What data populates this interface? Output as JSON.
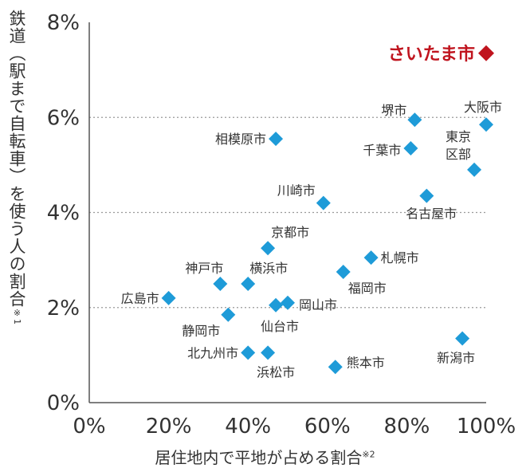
{
  "chart_data": {
    "type": "scatter",
    "title": "",
    "xlabel": "居住地内で平地が占める割合",
    "xlabel_note": "※2",
    "ylabel": "鉄道（駅まで自転車）を使う人の割合",
    "ylabel_note": "※1",
    "xlim": [
      0,
      100
    ],
    "ylim": [
      0,
      8
    ],
    "x_ticks": [
      {
        "value": 0,
        "label": "0%"
      },
      {
        "value": 20,
        "label": "20%"
      },
      {
        "value": 40,
        "label": "40%"
      },
      {
        "value": 60,
        "label": "60%"
      },
      {
        "value": 80,
        "label": "80%"
      },
      {
        "value": 100,
        "label": "100%"
      }
    ],
    "y_ticks": [
      {
        "value": 0,
        "label": "0%"
      },
      {
        "value": 2,
        "label": "2%"
      },
      {
        "value": 4,
        "label": "4%"
      },
      {
        "value": 6,
        "label": "6%"
      },
      {
        "value": 8,
        "label": "8%"
      }
    ],
    "grid": {
      "horizontal_dotted_at": [
        2,
        4,
        6
      ]
    },
    "colors": {
      "point": "#1e9bd8",
      "highlight": "#c0141e",
      "text": "#333333",
      "grid": "#999999"
    },
    "points": [
      {
        "name": "さいたま市",
        "x": 100,
        "y": 7.35,
        "highlight": true
      },
      {
        "name": "大阪市",
        "x": 100,
        "y": 5.85
      },
      {
        "name": "堺市",
        "x": 82,
        "y": 5.95
      },
      {
        "name": "千葉市",
        "x": 81,
        "y": 5.35
      },
      {
        "name": "東京区部",
        "x": 97,
        "y": 4.9
      },
      {
        "name": "相模原市",
        "x": 47,
        "y": 5.55
      },
      {
        "name": "名古屋市",
        "x": 85,
        "y": 4.35
      },
      {
        "name": "川崎市",
        "x": 59,
        "y": 4.2
      },
      {
        "name": "京都市",
        "x": 45,
        "y": 3.25
      },
      {
        "name": "札幌市",
        "x": 71,
        "y": 3.05
      },
      {
        "name": "福岡市",
        "x": 64,
        "y": 2.75
      },
      {
        "name": "神戸市",
        "x": 33,
        "y": 2.5
      },
      {
        "name": "横浜市",
        "x": 40,
        "y": 2.5
      },
      {
        "name": "広島市",
        "x": 20,
        "y": 2.2
      },
      {
        "name": "岡山市",
        "x": 50,
        "y": 2.1
      },
      {
        "name": "仙台市",
        "x": 47,
        "y": 2.05
      },
      {
        "name": "静岡市",
        "x": 35,
        "y": 1.85
      },
      {
        "name": "新潟市",
        "x": 94,
        "y": 1.35
      },
      {
        "name": "北九州市",
        "x": 40,
        "y": 1.05
      },
      {
        "name": "浜松市",
        "x": 45,
        "y": 1.05
      },
      {
        "name": "熊本市",
        "x": 62,
        "y": 0.75
      }
    ]
  }
}
